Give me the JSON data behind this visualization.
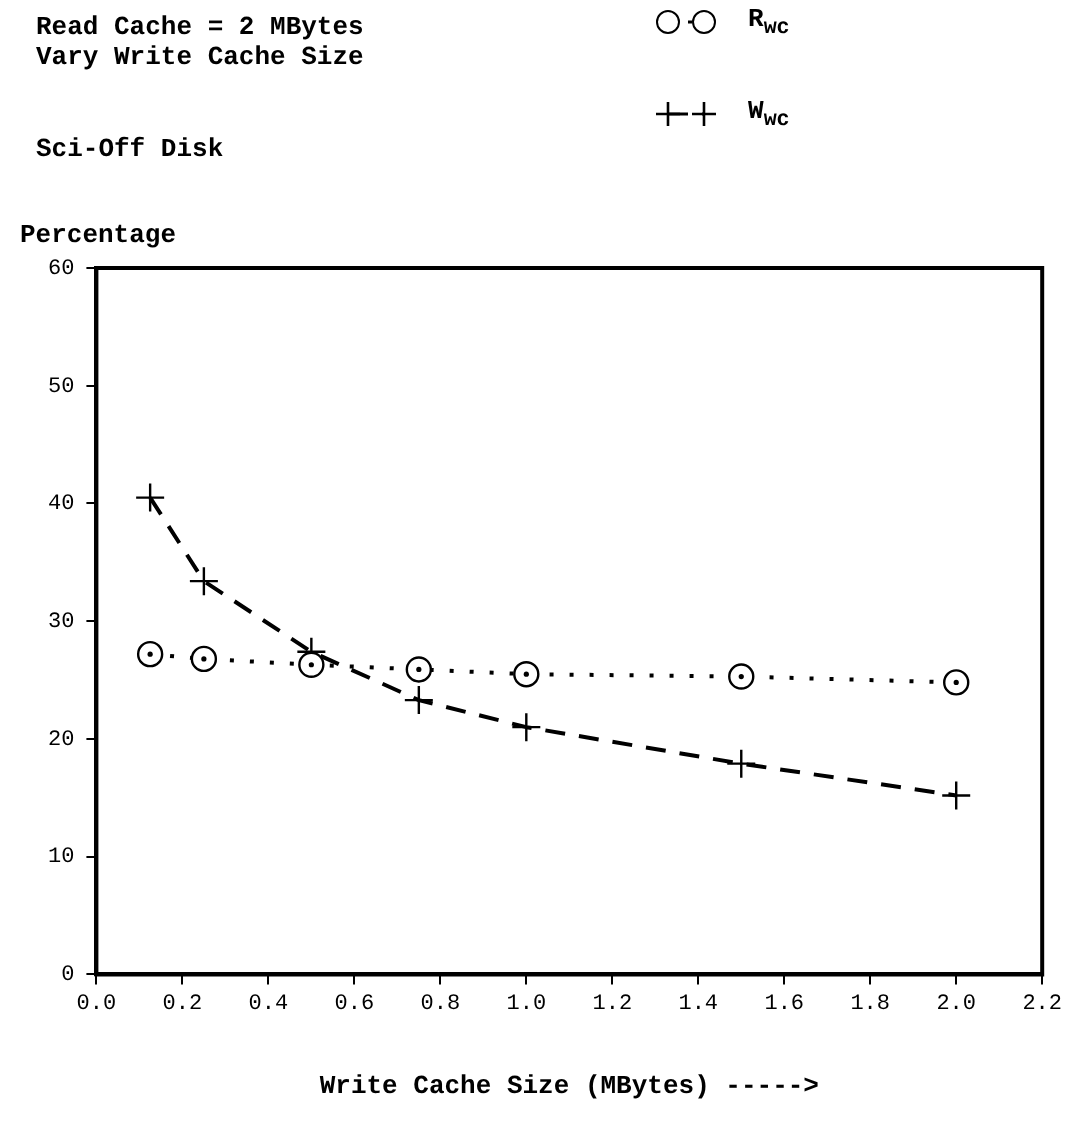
{
  "chart_data": {
    "type": "line",
    "title": "Read Cache = 2 MBytes",
    "subtitle": "Vary Write Cache Size",
    "annotations": [
      "Sci-Off Disk"
    ],
    "xlabel": "Write Cache Size (MBytes) ----->",
    "ylabel": "Percentage",
    "x": [
      0.125,
      0.25,
      0.5,
      0.75,
      1.0,
      1.5,
      2.0
    ],
    "series": [
      {
        "name": "R$_{wc}$",
        "color": "#000000",
        "marker": "circle",
        "line_style": "dotted",
        "values": [
          27.2,
          26.8,
          26.3,
          25.9,
          25.5,
          25.3,
          24.8
        ]
      },
      {
        "name": "W$_{wc}$",
        "color": "#000000",
        "marker": "cross",
        "line_style": "dashed",
        "values": [
          40.5,
          33.4,
          27.4,
          23.3,
          21.0,
          17.9,
          15.2
        ]
      }
    ],
    "xlim": [
      0,
      2.2
    ],
    "xticks": [
      {
        "value": 0,
        "label": "0.0"
      },
      {
        "value": 0.2,
        "label": "0.2"
      },
      {
        "value": 0.4,
        "label": "0.4"
      },
      {
        "value": 0.6,
        "label": "0.6"
      },
      {
        "value": 0.8,
        "label": "0.8"
      },
      {
        "value": 1.0,
        "label": "1.0"
      },
      {
        "value": 1.2,
        "label": "1.2"
      },
      {
        "value": 1.4,
        "label": "1.4"
      },
      {
        "value": 1.6,
        "label": "1.6"
      },
      {
        "value": 1.8,
        "label": "1.8"
      },
      {
        "value": 2.0,
        "label": "2.0"
      },
      {
        "value": 2.2,
        "label": "2.2"
      }
    ],
    "ylim": [
      0,
      60
    ],
    "yticks": [
      0,
      10,
      20,
      30,
      40,
      50,
      60
    ],
    "grid": false,
    "legend": "top right"
  }
}
